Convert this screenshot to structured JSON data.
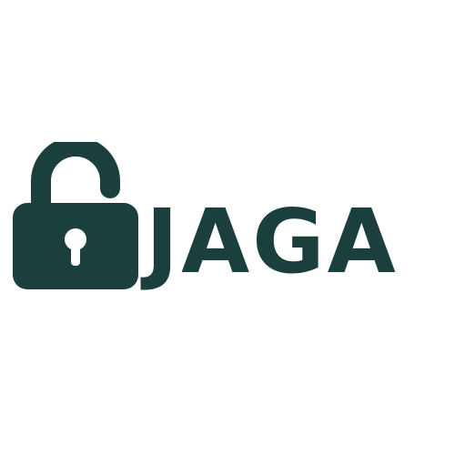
{
  "brand": {
    "name": "JAGA",
    "icon": "open-padlock-icon",
    "color": "#1a3f3c",
    "background": "#ffffff"
  }
}
